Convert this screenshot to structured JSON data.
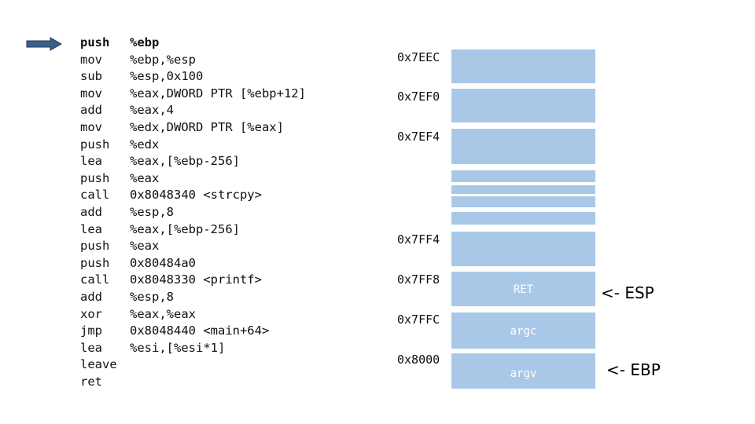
{
  "instructions": [
    {
      "op": "push",
      "args": "%ebp",
      "current": true
    },
    {
      "op": "mov",
      "args": "%ebp,%esp"
    },
    {
      "op": "sub",
      "args": "%esp,0x100"
    },
    {
      "op": "mov",
      "args": "%eax,DWORD PTR [%ebp+12]"
    },
    {
      "op": "add",
      "args": "%eax,4"
    },
    {
      "op": "mov",
      "args": "%edx,DWORD PTR [%eax]"
    },
    {
      "op": "push",
      "args": "%edx"
    },
    {
      "op": "lea",
      "args": "%eax,[%ebp-256]"
    },
    {
      "op": "push",
      "args": "%eax"
    },
    {
      "op": "call",
      "args": "0x8048340 <strcpy>"
    },
    {
      "op": "add",
      "args": "%esp,8"
    },
    {
      "op": "lea",
      "args": "%eax,[%ebp-256]"
    },
    {
      "op": "push",
      "args": "%eax"
    },
    {
      "op": "push",
      "args": "0x80484a0"
    },
    {
      "op": "call",
      "args": "0x8048330 <printf>"
    },
    {
      "op": "add",
      "args": "%esp,8"
    },
    {
      "op": "xor",
      "args": "%eax,%eax"
    },
    {
      "op": "jmp",
      "args": "0x8048440 <main+64>"
    },
    {
      "op": "lea",
      "args": "%esi,[%esi*1]"
    },
    {
      "op": "leave",
      "args": ""
    },
    {
      "op": "ret",
      "args": ""
    }
  ],
  "stack": {
    "addresses": [
      "0x7EEC",
      "0x7EF0",
      "0x7EF4",
      "0x7FF4",
      "0x7FF8",
      "0x7FFC",
      "0x8000"
    ],
    "cell_labels": {
      "ret": "RET",
      "argc": "argc",
      "argv": "argv"
    },
    "esp_label": "<- ESP",
    "ebp_label": "<- EBP"
  },
  "colors": {
    "stack_cell": "#a9c8e8",
    "arrow": "#3c5f86"
  }
}
